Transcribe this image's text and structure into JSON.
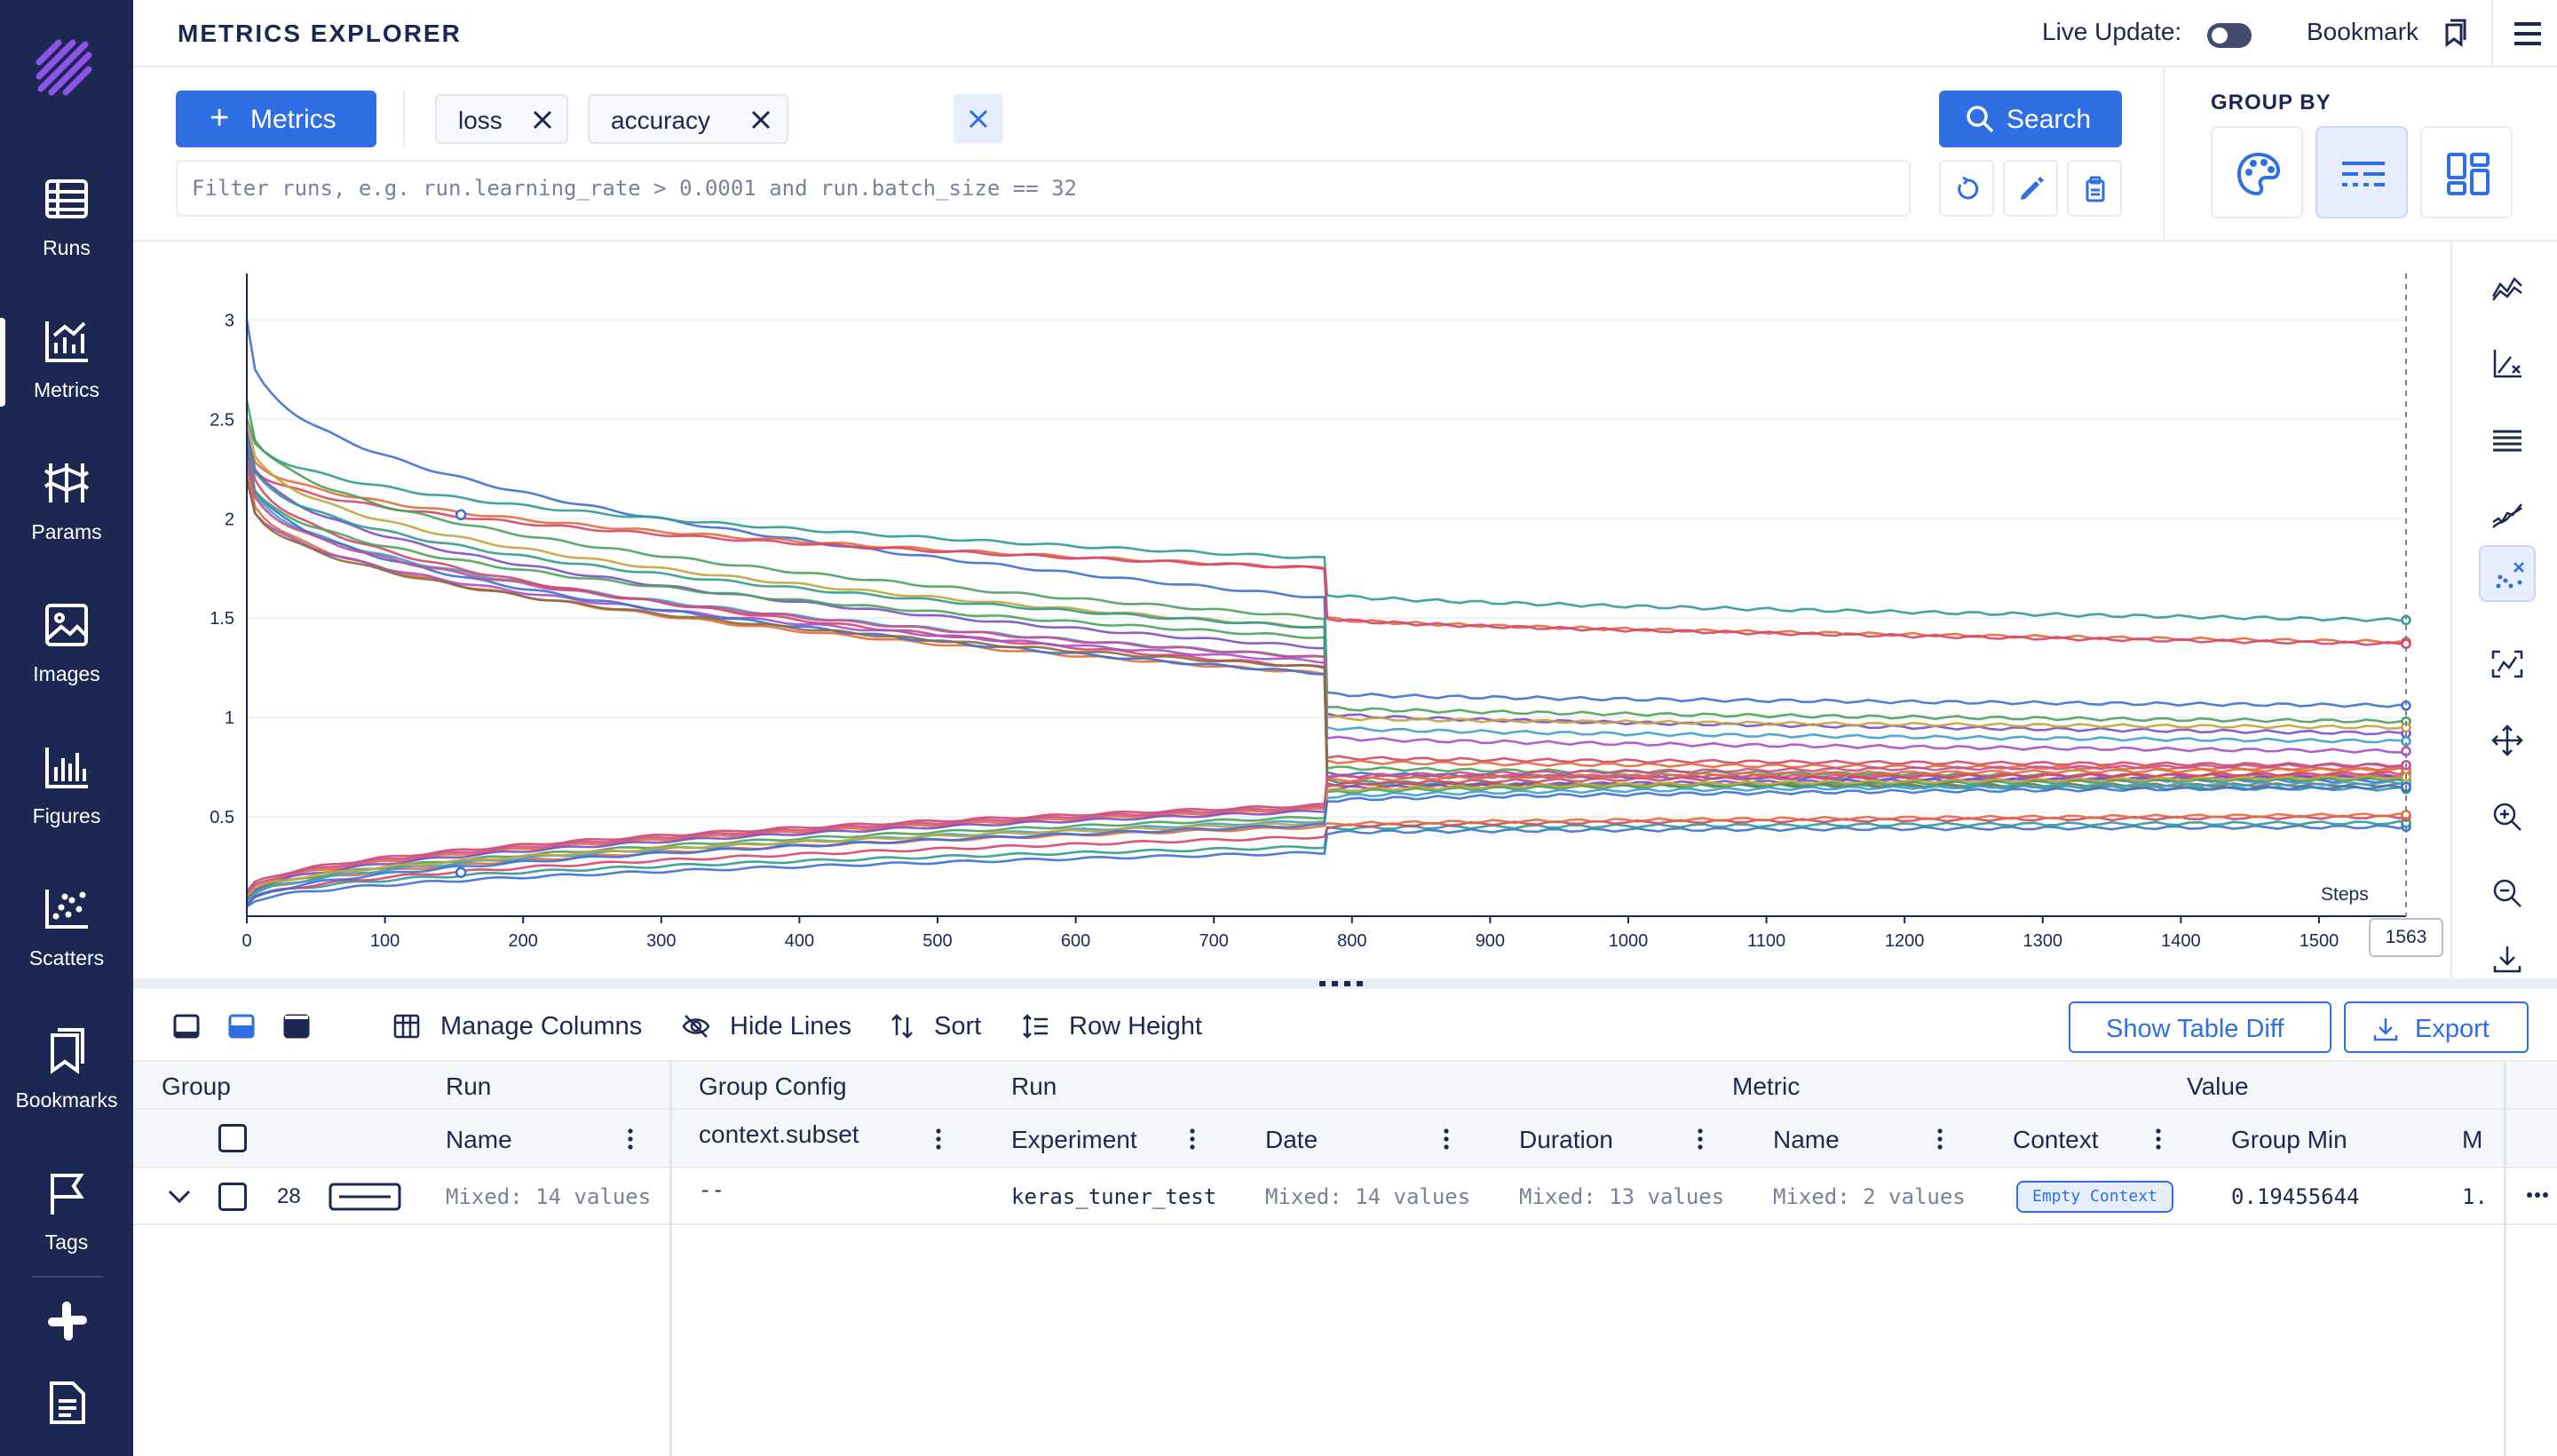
{
  "sidebar": {
    "logo": "aim-logo-icon",
    "items": [
      {
        "label": "Runs",
        "icon": "table-icon"
      },
      {
        "label": "Metrics",
        "icon": "line-chart-icon",
        "active": true
      },
      {
        "label": "Params",
        "icon": "params-icon"
      },
      {
        "label": "Images",
        "icon": "image-icon"
      },
      {
        "label": "Figures",
        "icon": "bar-chart-icon"
      },
      {
        "label": "Scatters",
        "icon": "scatter-icon"
      },
      {
        "label": "Bookmarks",
        "icon": "bookmark-icon"
      },
      {
        "label": "Tags",
        "icon": "flag-icon"
      }
    ],
    "bottom_icons": [
      "slack-icon",
      "docs-icon"
    ]
  },
  "header": {
    "title": "METRICS EXPLORER",
    "live_update_label": "Live Update:",
    "live_update_on": false,
    "bookmark_label": "Bookmark"
  },
  "query": {
    "metrics_button": "Metrics",
    "chips": [
      "loss",
      "accuracy"
    ],
    "search_button": "Search",
    "filter_placeholder": "Filter runs, e.g. run.learning_rate > 0.0001 and run.batch_size == 32"
  },
  "group_by": {
    "title": "GROUP BY",
    "options": [
      "color",
      "stroke",
      "chart"
    ],
    "active": "stroke"
  },
  "chart_data": {
    "type": "line",
    "xlabel": "Steps",
    "x_ticks": [
      0,
      100,
      200,
      300,
      400,
      500,
      600,
      700,
      800,
      900,
      1000,
      1100,
      1200,
      1300,
      1400,
      1500
    ],
    "y_ticks": [
      0.5,
      1,
      1.5,
      2,
      2.5,
      3
    ],
    "xlim": [
      0,
      1563
    ],
    "ylim": [
      0.0,
      3.1
    ],
    "cursor_step": "1563",
    "series_count": 28,
    "series": [
      {
        "color": "#3b6fd6",
        "start": 3.0,
        "mid": 1.6,
        "drop": 1.12,
        "end": 1.06
      },
      {
        "color": "#2e9b8f",
        "start": 2.5,
        "mid": 1.8,
        "drop": 1.62,
        "end": 1.49
      },
      {
        "color": "#e06d3c",
        "start": 2.4,
        "mid": 1.75,
        "drop": 1.5,
        "end": 1.38
      },
      {
        "color": "#d6456a",
        "start": 2.35,
        "mid": 1.75,
        "drop": 1.5,
        "end": 1.37
      },
      {
        "color": "#49a35a",
        "start": 2.6,
        "mid": 1.5,
        "drop": 1.05,
        "end": 0.98
      },
      {
        "color": "#7b4fc9",
        "start": 2.45,
        "mid": 1.35,
        "drop": 1.02,
        "end": 0.92
      },
      {
        "color": "#c4a43a",
        "start": 2.5,
        "mid": 1.45,
        "drop": 1.0,
        "end": 0.95
      },
      {
        "color": "#3da0c9",
        "start": 2.3,
        "mid": 1.3,
        "drop": 0.95,
        "end": 0.88
      },
      {
        "color": "#d6456a",
        "start": 2.4,
        "mid": 1.25,
        "drop": 0.8,
        "end": 0.76
      },
      {
        "color": "#e06d3c",
        "start": 2.25,
        "mid": 1.22,
        "drop": 0.78,
        "end": 0.74
      },
      {
        "color": "#a64fc9",
        "start": 2.2,
        "mid": 1.28,
        "drop": 0.9,
        "end": 0.83
      },
      {
        "color": "#3b6fd6",
        "start": 2.35,
        "mid": 1.22,
        "drop": 0.72,
        "end": 0.68
      },
      {
        "color": "#49a35a",
        "start": 2.3,
        "mid": 1.4,
        "drop": 0.75,
        "end": 0.7
      },
      {
        "color": "#2e9b8f",
        "start": 2.4,
        "mid": 1.45,
        "drop": 0.68,
        "end": 0.64
      },
      {
        "color": "#c94f8e",
        "start": 2.28,
        "mid": 1.3,
        "drop": 0.7,
        "end": 0.71
      },
      {
        "color": "#8a6b3a",
        "start": 2.2,
        "mid": 1.25,
        "drop": 0.66,
        "end": 0.66
      },
      {
        "color": "#3b6fd6",
        "start": 0.05,
        "mid": 0.32,
        "drop": 0.42,
        "end": 0.45
      },
      {
        "color": "#2e9b8f",
        "start": 0.07,
        "mid": 0.35,
        "drop": 0.44,
        "end": 0.47
      },
      {
        "color": "#d6456a",
        "start": 0.06,
        "mid": 0.4,
        "drop": 0.45,
        "end": 0.5
      },
      {
        "color": "#e06d3c",
        "start": 0.08,
        "mid": 0.45,
        "drop": 0.46,
        "end": 0.51
      },
      {
        "color": "#d6456a",
        "start": 0.12,
        "mid": 0.56,
        "drop": 0.66,
        "end": 0.72
      },
      {
        "color": "#e06d3c",
        "start": 0.1,
        "mid": 0.54,
        "drop": 0.68,
        "end": 0.74
      },
      {
        "color": "#7b4fc9",
        "start": 0.09,
        "mid": 0.53,
        "drop": 0.64,
        "end": 0.7
      },
      {
        "color": "#49a35a",
        "start": 0.08,
        "mid": 0.5,
        "drop": 0.62,
        "end": 0.69
      },
      {
        "color": "#3da0c9",
        "start": 0.07,
        "mid": 0.48,
        "drop": 0.6,
        "end": 0.67
      },
      {
        "color": "#c4a43a",
        "start": 0.1,
        "mid": 0.47,
        "drop": 0.63,
        "end": 0.7
      },
      {
        "color": "#3b6fd6",
        "start": 0.05,
        "mid": 0.46,
        "drop": 0.58,
        "end": 0.65
      },
      {
        "color": "#c94f8e",
        "start": 0.11,
        "mid": 0.55,
        "drop": 0.7,
        "end": 0.76
      }
    ]
  },
  "chart_tools": [
    "chart-type-icon",
    "axes-scale-icon",
    "align-icon",
    "smoothing-icon",
    "ignore-outliers-icon",
    "highlight-icon",
    "move-icon",
    "zoom-in-icon",
    "zoom-out-icon",
    "download-icon"
  ],
  "table_toolbar": {
    "manage_columns": "Manage Columns",
    "hide_lines": "Hide Lines",
    "sort": "Sort",
    "row_height": "Row Height",
    "show_table_diff": "Show Table Diff",
    "export": "Export"
  },
  "table": {
    "groups": {
      "group": "Group",
      "run": "Run",
      "group_config": "Group Config",
      "run2": "Run",
      "metric": "Metric",
      "value": "Value"
    },
    "columns": {
      "name": "Name",
      "context_subset": "context.subset",
      "experiment": "Experiment",
      "date": "Date",
      "duration": "Duration",
      "metric_name": "Name",
      "context": "Context",
      "group_min": "Group Min",
      "next_col": "M"
    },
    "row": {
      "count": "28",
      "name": "Mixed: 14 values",
      "context_subset": "--",
      "experiment": "keras_tuner_test",
      "date": "Mixed: 14 values",
      "duration": "Mixed: 13 values",
      "metric_name": "Mixed: 2 values",
      "context": "Empty Context",
      "group_min": "0.19455644",
      "next_value": "1."
    }
  }
}
